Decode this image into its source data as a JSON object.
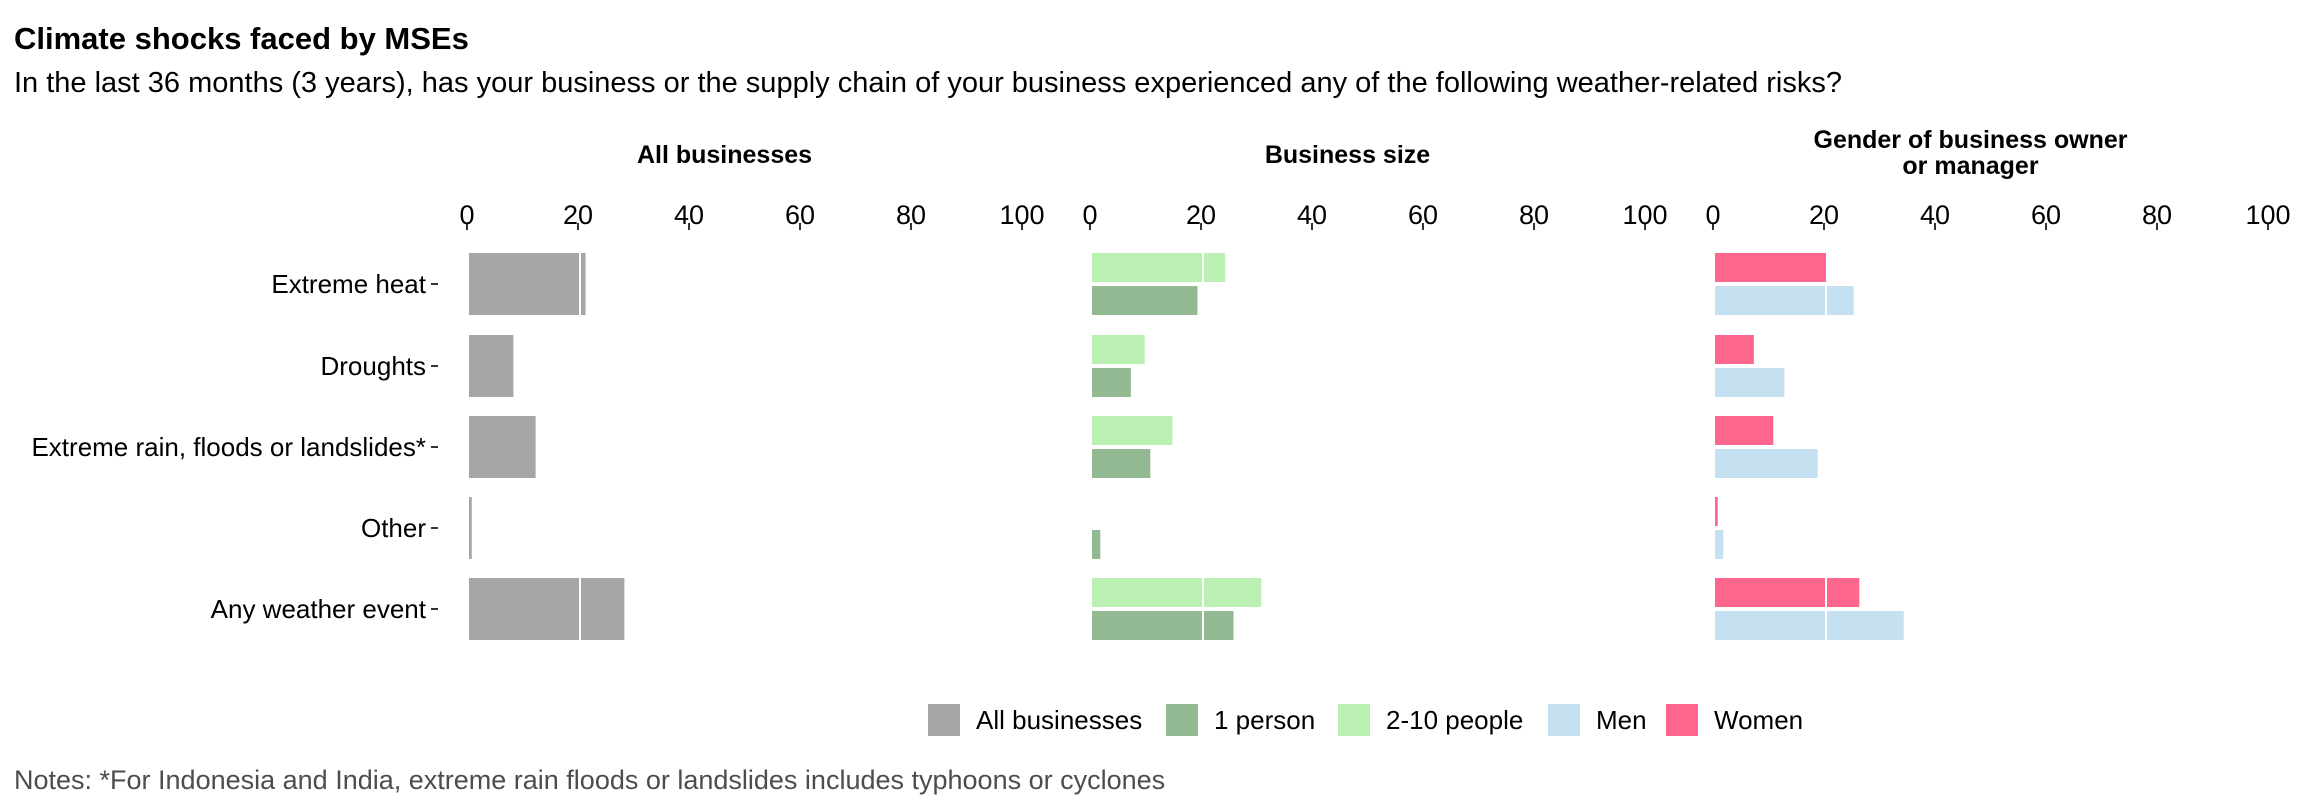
{
  "chart_data": {
    "type": "bar",
    "title": "Climate shocks faced by MSEs",
    "subtitle": "In the last 36 months (3 years), has your business or the supply chain of your business experienced any of the following weather-related risks?",
    "notes": "Notes: *For Indonesia and India, extreme rain floods or landslides includes typhoons or cyclones",
    "orientation": "horizontal",
    "categories": [
      "Extreme heat",
      "Droughts",
      "Extreme rain, floods or landslides*",
      "Other",
      "Any weather event"
    ],
    "xlim": [
      0,
      100
    ],
    "xticks": [
      "0",
      "20",
      "40",
      "60",
      "80",
      "100"
    ],
    "grid": false,
    "legend_position": "bottom",
    "panels": [
      {
        "title": "All businesses",
        "series": [
          {
            "name": "All businesses",
            "values": [
              21,
              8,
              12,
              0.5,
              28
            ]
          }
        ]
      },
      {
        "title": "Business size",
        "series": [
          {
            "name": "2-10 people",
            "values": [
              24,
              9.5,
              14.5,
              0,
              30.5
            ]
          },
          {
            "name": "1 person",
            "values": [
              19,
              7,
              10.5,
              1.5,
              25.5
            ]
          }
        ]
      },
      {
        "title": "Gender of business owner or manager",
        "title_lines": [
          "Gender of business owner",
          "or manager"
        ],
        "series": [
          {
            "name": "Women",
            "values": [
              20,
              7,
              10.5,
              0.5,
              26
            ]
          },
          {
            "name": "Men",
            "values": [
              25,
              12.5,
              18.5,
              1.5,
              34
            ]
          }
        ]
      }
    ],
    "legend": [
      "All businesses",
      "1 person",
      "2-10 people",
      "Men",
      "Women"
    ],
    "colors": {
      "All businesses": "#a6a6a6",
      "1 person": "#93b993",
      "2-10 people": "#baf1b2",
      "Men": "#c5e0f1",
      "Women": "#ff668d"
    }
  }
}
